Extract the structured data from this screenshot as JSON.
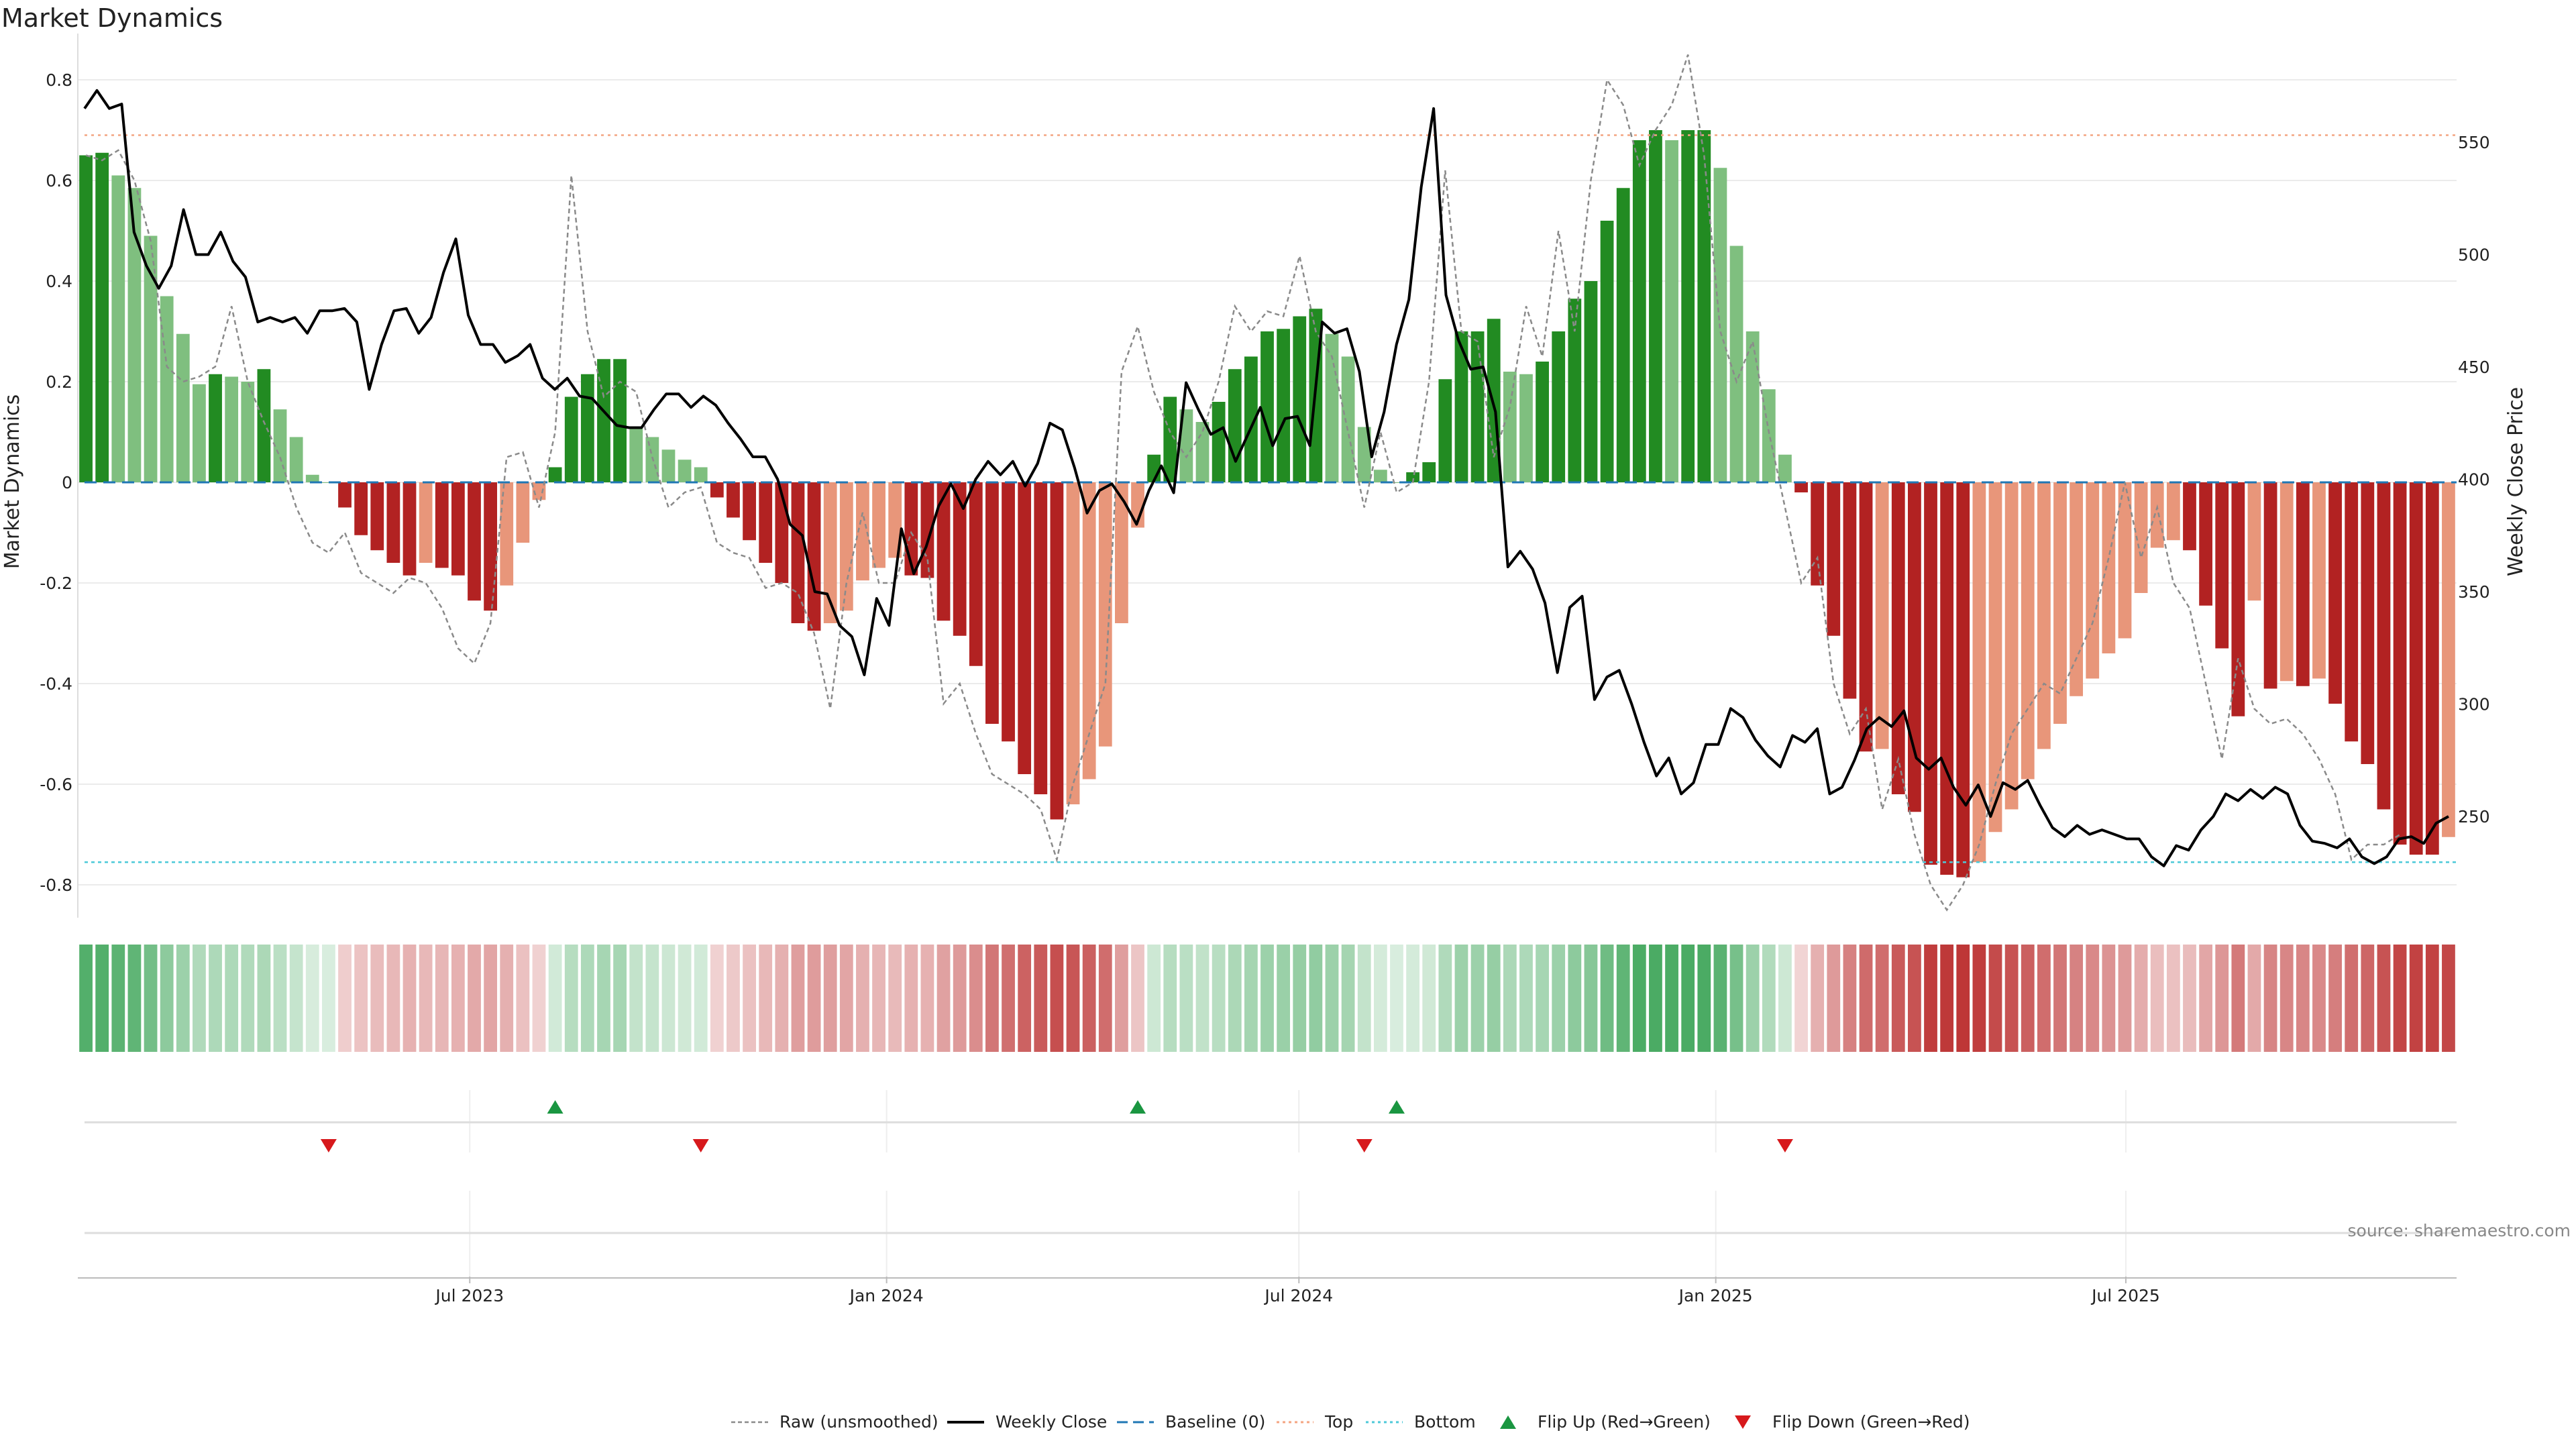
{
  "chart_data": {
    "type": "bar+line",
    "title": "Market Dynamics",
    "ylabel_left": "Market Dynamics",
    "ylabel_right": "Weekly Close Price",
    "ylim_left": [
      -0.85,
      0.8
    ],
    "yticks_left": [
      0.8,
      0.6,
      0.4,
      0.2,
      0,
      -0.2,
      -0.4,
      -0.6,
      -0.8
    ],
    "ylim_right": [
      215,
      580
    ],
    "yticks_right": [
      550,
      500,
      450,
      400,
      350,
      300,
      250
    ],
    "xlim": [
      "2023-01-09",
      "2025-11-24"
    ],
    "x_ticks": [
      {
        "label": "Jul 2023",
        "date": "2023-07-01"
      },
      {
        "label": "Jan 2024",
        "date": "2024-01-01"
      },
      {
        "label": "Jul 2024",
        "date": "2024-07-01"
      },
      {
        "label": "Jan 2025",
        "date": "2025-01-01"
      },
      {
        "label": "Jul 2025",
        "date": "2025-07-01"
      }
    ],
    "start_week": "2023-01-09",
    "top_line": 0.69,
    "bottom_line": -0.755,
    "baseline": 0,
    "colors": {
      "pos_strong": "#228b22",
      "pos_weak": "#7fbf7f",
      "neg_strong": "#b22222",
      "neg_weak": "#e8967a",
      "weekly_close": "#000000",
      "raw": "#8a8a8a",
      "baseline": "#1f77b4",
      "top": "#f4a582",
      "bottom": "#4dc9d9",
      "flip_up": "#1a9641",
      "flip_down": "#d7191c"
    },
    "smoothed": [
      0.65,
      0.655,
      0.61,
      0.585,
      0.49,
      0.37,
      0.295,
      0.195,
      0.215,
      0.21,
      0.2,
      0.225,
      0.145,
      0.09,
      0.015,
      0,
      -0.05,
      -0.105,
      -0.135,
      -0.16,
      -0.185,
      -0.16,
      -0.17,
      -0.185,
      -0.235,
      -0.255,
      -0.205,
      -0.12,
      -0.035,
      0.03,
      0.17,
      0.215,
      0.245,
      0.245,
      0.11,
      0.09,
      0.065,
      0.045,
      0.03,
      -0.03,
      -0.07,
      -0.115,
      -0.16,
      -0.2,
      -0.28,
      -0.295,
      -0.28,
      -0.255,
      -0.195,
      -0.17,
      -0.15,
      -0.185,
      -0.19,
      -0.275,
      -0.305,
      -0.365,
      -0.48,
      -0.515,
      -0.58,
      -0.62,
      -0.67,
      -0.64,
      -0.59,
      -0.525,
      -0.28,
      -0.09,
      0.055,
      0.17,
      0.145,
      0.12,
      0.16,
      0.225,
      0.25,
      0.3,
      0.305,
      0.33,
      0.345,
      0.295,
      0.25,
      0.11,
      0.025,
      0,
      0.02,
      0.04,
      0.205,
      0.3,
      0.3,
      0.325,
      0.22,
      0.215,
      0.24,
      0.3,
      0.365,
      0.4,
      0.52,
      0.585,
      0.68,
      0.7,
      0.68,
      0.7,
      0.7,
      0.625,
      0.47,
      0.3,
      0.185,
      0.055,
      -0.02,
      -0.205,
      -0.305,
      -0.43,
      -0.535,
      -0.53,
      -0.62,
      -0.655,
      -0.76,
      -0.78,
      -0.785,
      -0.755,
      -0.695,
      -0.65,
      -0.59,
      -0.53,
      -0.48,
      -0.425,
      -0.39,
      -0.34,
      -0.31,
      -0.22,
      -0.13,
      -0.115,
      -0.135,
      -0.245,
      -0.33,
      -0.465,
      -0.235,
      -0.41,
      -0.395,
      -0.405,
      -0.39,
      -0.44,
      -0.515,
      -0.56,
      -0.65,
      -0.72,
      -0.74,
      -0.74,
      -0.705
    ],
    "raw": [
      0.65,
      0.64,
      0.66,
      0.6,
      0.48,
      0.23,
      0.2,
      0.21,
      0.23,
      0.35,
      0.2,
      0.12,
      0.05,
      -0.05,
      -0.12,
      -0.14,
      -0.1,
      -0.18,
      -0.2,
      -0.22,
      -0.19,
      -0.2,
      -0.25,
      -0.33,
      -0.36,
      -0.28,
      0.05,
      0.06,
      -0.05,
      0.1,
      0.61,
      0.3,
      0.17,
      0.2,
      0.18,
      0.05,
      -0.05,
      -0.02,
      -0.01,
      -0.12,
      -0.14,
      -0.15,
      -0.21,
      -0.2,
      -0.22,
      -0.3,
      -0.45,
      -0.2,
      -0.06,
      -0.2,
      -0.2,
      -0.1,
      -0.15,
      -0.44,
      -0.4,
      -0.5,
      -0.58,
      -0.6,
      -0.62,
      -0.65,
      -0.75,
      -0.6,
      -0.5,
      -0.4,
      0.22,
      0.31,
      0.18,
      0.1,
      0.05,
      0.1,
      0.2,
      0.35,
      0.3,
      0.34,
      0.33,
      0.45,
      0.3,
      0.25,
      0.1,
      -0.05,
      0.1,
      -0.02,
      0.0,
      0.2,
      0.62,
      0.3,
      0.28,
      0.05,
      0.15,
      0.35,
      0.25,
      0.5,
      0.3,
      0.6,
      0.8,
      0.75,
      0.63,
      0.7,
      0.75,
      0.85,
      0.65,
      0.3,
      0.2,
      0.28,
      0.1,
      -0.05,
      -0.2,
      -0.15,
      -0.4,
      -0.5,
      -0.45,
      -0.65,
      -0.55,
      -0.7,
      -0.8,
      -0.85,
      -0.8,
      -0.72,
      -0.6,
      -0.5,
      -0.45,
      -0.4,
      -0.42,
      -0.35,
      -0.28,
      -0.15,
      0.0,
      -0.15,
      -0.05,
      -0.2,
      -0.25,
      -0.4,
      -0.55,
      -0.35,
      -0.45,
      -0.48,
      -0.47,
      -0.5,
      -0.55,
      -0.62,
      -0.75,
      -0.72,
      -0.72,
      -0.7
    ],
    "weekly_close": [
      565,
      573,
      565,
      567,
      510,
      495,
      485,
      495,
      520,
      500,
      500,
      510,
      497,
      490,
      470,
      472,
      470,
      472,
      465,
      475,
      475,
      476,
      470,
      440,
      460,
      475,
      476,
      465,
      472,
      492,
      507,
      473,
      460,
      460,
      452,
      455,
      460,
      445,
      440,
      445,
      437,
      436,
      430,
      424,
      423,
      423,
      431,
      438,
      438,
      432,
      437,
      433,
      425,
      418,
      410,
      410,
      400,
      380,
      375,
      350,
      349,
      335,
      330,
      313,
      347,
      335,
      378,
      358,
      370,
      388,
      398,
      387,
      400,
      408,
      402,
      408,
      397,
      407,
      425,
      422,
      405,
      385,
      395,
      398,
      390,
      380,
      395,
      406,
      394,
      443,
      431,
      420,
      423,
      408,
      420,
      432,
      415,
      427,
      428,
      415,
      470,
      465,
      467,
      448,
      410,
      430,
      460,
      480,
      530,
      565,
      482,
      462,
      449,
      450,
      430,
      361,
      368,
      360,
      345,
      314,
      343,
      348,
      302,
      312,
      315,
      300,
      283,
      268,
      276,
      260,
      265,
      282,
      282,
      298,
      294,
      284,
      277,
      272,
      286,
      283,
      289,
      260,
      263,
      275,
      289,
      294,
      290,
      297,
      276,
      271,
      276,
      263,
      255,
      264,
      250,
      265,
      262,
      266,
      255,
      245,
      241,
      246,
      242,
      244,
      242,
      240,
      240,
      232,
      228,
      237,
      235,
      244,
      250,
      260,
      257,
      262,
      258,
      263,
      260,
      246,
      239,
      238,
      236,
      240,
      232,
      229,
      232,
      240,
      241,
      238,
      247,
      250
    ],
    "close_points": 194,
    "heat_strip": "one intensity cell per week (green for positive, red for negative readings)",
    "flips": [
      {
        "type": "up",
        "week": 29
      },
      {
        "type": "up",
        "week": 65
      },
      {
        "type": "up",
        "week": 81
      },
      {
        "type": "down",
        "week": 15
      },
      {
        "type": "down",
        "week": 38
      },
      {
        "type": "down",
        "week": 79
      },
      {
        "type": "down",
        "week": 105
      }
    ],
    "legend": [
      {
        "label": "Raw (unsmoothed)",
        "icon": "dashed-grey-line"
      },
      {
        "label": "Weekly Close",
        "icon": "solid-black-line"
      },
      {
        "label": "Baseline (0)",
        "icon": "dashed-blue-line"
      },
      {
        "label": "Top",
        "icon": "dotted-orange-line"
      },
      {
        "label": "Bottom",
        "icon": "dotted-cyan-line"
      },
      {
        "label": "Flip Up (Red→Green)",
        "icon": "green-triangle-up"
      },
      {
        "label": "Flip Down (Green→Red)",
        "icon": "red-triangle-down"
      }
    ],
    "legend_placement": "bottom-center",
    "source": "source: sharemaestro.com",
    "grid": true
  }
}
